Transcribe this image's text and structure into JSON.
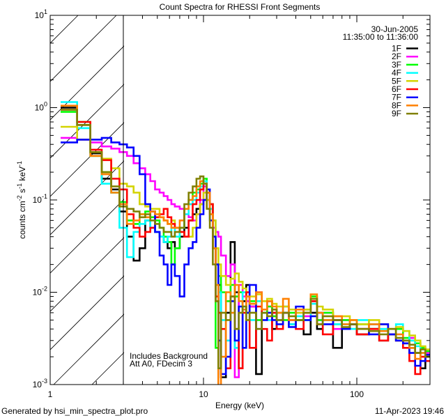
{
  "chart_data": {
    "type": "line",
    "style": "histogram-steps",
    "title": "Count Spectra for RHESSI Front Segments",
    "xlabel": "Energy (keV)",
    "ylabel": "counts cm-2 s-1 keV-1",
    "xscale": "log",
    "yscale": "log",
    "xlim": [
      1,
      300
    ],
    "ylim": [
      0.001,
      10
    ],
    "x_ticks": [
      {
        "value": 1,
        "label": "1"
      },
      {
        "value": 10,
        "label": "10"
      },
      {
        "value": 100,
        "label": "100"
      }
    ],
    "y_ticks": [
      {
        "value": 10,
        "base": "10",
        "exp": "1"
      },
      {
        "value": 1,
        "base": "10",
        "exp": "0"
      },
      {
        "value": 0.1,
        "base": "10",
        "exp": "-1"
      },
      {
        "value": 0.01,
        "base": "10",
        "exp": "-2"
      },
      {
        "value": 0.001,
        "base": "10",
        "exp": "-3"
      }
    ],
    "grid": false,
    "legend_position": "top-right",
    "date": "30-Jun-2005",
    "time_range": "11:35:00 to 11:36:00",
    "shaded_region": {
      "xmin": 1,
      "xmax": 3,
      "pattern": "hatched"
    },
    "annotations": [
      "Includes Background",
      "Att A0, FDecim 3"
    ],
    "energy_edges": [
      1.17,
      1.5,
      1.83,
      2.17,
      2.5,
      2.83,
      3.17,
      3.5,
      3.83,
      4.17,
      4.5,
      4.83,
      5.17,
      5.5,
      5.83,
      6.17,
      6.5,
      7,
      7.5,
      8,
      8.5,
      9,
      9.5,
      10,
      10.5,
      11,
      11.5,
      12,
      12.5,
      13,
      14,
      15,
      16,
      17,
      18,
      19,
      20,
      22,
      24,
      26,
      28,
      30,
      33,
      36,
      40,
      45,
      50,
      55,
      60,
      70,
      80,
      90,
      100,
      120,
      140,
      160,
      180,
      200,
      220,
      240,
      260,
      280,
      300
    ],
    "series": [
      {
        "name": "1F",
        "color": "#000000",
        "values": [
          1.0,
          0.65,
          0.32,
          0.17,
          0.13,
          0.075,
          0.04,
          0.022,
          0.03,
          0.06,
          0.05,
          0.045,
          0.04,
          0.035,
          0.03,
          0.035,
          0.03,
          0.04,
          0.05,
          0.06,
          0.07,
          0.08,
          0.09,
          0.1,
          0.12,
          0.09,
          0.03,
          0.008,
          0.012,
          0.0012,
          0.006,
          0.035,
          0.01,
          0.0015,
          0.008,
          0.012,
          0.007,
          0.0013,
          0.006,
          0.008,
          0.004,
          0.005,
          0.006,
          0.0045,
          0.005,
          0.0035,
          0.006,
          0.004,
          0.005,
          0.0025,
          0.004,
          0.0045,
          0.0035,
          0.004,
          0.003,
          0.0035,
          0.003,
          0.0028,
          0.0025,
          0.0022,
          0.0015,
          0.002
        ]
      },
      {
        "name": "2F",
        "color": "#ff00ff",
        "values": [
          0.47,
          0.45,
          0.42,
          0.38,
          0.36,
          0.33,
          0.3,
          0.25,
          0.22,
          0.19,
          0.16,
          0.13,
          0.12,
          0.11,
          0.1,
          0.09,
          0.085,
          0.08,
          0.07,
          0.065,
          0.06,
          0.07,
          0.1,
          0.14,
          0.1,
          0.07,
          0.05,
          0.045,
          0.04,
          0.025,
          0.015,
          0.02,
          0.0012,
          0.012,
          0.009,
          0.008,
          0.007,
          0.01,
          0.006,
          0.007,
          0.006,
          0.005,
          0.007,
          0.005,
          0.006,
          0.0055,
          0.008,
          0.005,
          0.006,
          0.004,
          0.005,
          0.0045,
          0.004,
          0.0045,
          0.004,
          0.0035,
          0.004,
          0.003,
          0.0032,
          0.0028,
          0.0025,
          0.0022
        ]
      },
      {
        "name": "3F",
        "color": "#00ff00",
        "values": [
          0.9,
          0.7,
          0.3,
          0.2,
          0.12,
          0.095,
          0.06,
          0.055,
          0.07,
          0.075,
          0.065,
          0.06,
          0.05,
          0.04,
          0.035,
          0.02,
          0.03,
          0.05,
          0.08,
          0.1,
          0.12,
          0.13,
          0.15,
          0.17,
          0.12,
          0.08,
          0.04,
          0.0025,
          0.015,
          0.01,
          0.008,
          0.012,
          0.009,
          0.01,
          0.007,
          0.006,
          0.008,
          0.005,
          0.006,
          0.007,
          0.0055,
          0.006,
          0.005,
          0.006,
          0.005,
          0.0065,
          0.009,
          0.005,
          0.006,
          0.0045,
          0.005,
          0.004,
          0.0045,
          0.004,
          0.0038,
          0.0035,
          0.004,
          0.0032,
          0.003,
          0.0028,
          0.0025,
          0.0023
        ]
      },
      {
        "name": "4F",
        "color": "#00ffff",
        "values": [
          1.15,
          0.6,
          0.3,
          0.15,
          0.12,
          0.05,
          0.024,
          0.045,
          0.055,
          0.06,
          0.05,
          0.045,
          0.04,
          0.035,
          0.04,
          0.05,
          0.04,
          0.05,
          0.07,
          0.09,
          0.1,
          0.12,
          0.14,
          0.16,
          0.12,
          0.08,
          0.06,
          0.03,
          0.01,
          0.005,
          0.003,
          0.008,
          0.0025,
          0.007,
          0.01,
          0.006,
          0.005,
          0.008,
          0.006,
          0.005,
          0.006,
          0.005,
          0.007,
          0.0045,
          0.0055,
          0.005,
          0.0075,
          0.006,
          0.005,
          0.0045,
          0.0045,
          0.004,
          0.005,
          0.0045,
          0.004,
          0.0035,
          0.0045,
          0.0038,
          0.003,
          0.0026,
          0.0022,
          0.002
        ]
      },
      {
        "name": "5F",
        "color": "#d4d400",
        "values": [
          0.62,
          0.45,
          0.33,
          0.28,
          0.22,
          0.15,
          0.14,
          0.12,
          0.09,
          0.085,
          0.08,
          0.08,
          0.065,
          0.06,
          0.055,
          0.06,
          0.05,
          0.045,
          0.04,
          0.04,
          0.05,
          0.07,
          0.09,
          0.12,
          0.1,
          0.09,
          0.06,
          0.03,
          0.02,
          0.015,
          0.012,
          0.014,
          0.016,
          0.013,
          0.011,
          0.01,
          0.009,
          0.0095,
          0.008,
          0.0085,
          0.0075,
          0.007,
          0.007,
          0.0065,
          0.006,
          0.0065,
          0.0085,
          0.007,
          0.0065,
          0.0055,
          0.0055,
          0.005,
          0.0045,
          0.005,
          0.0045,
          0.004,
          0.0042,
          0.0038,
          0.0034,
          0.003,
          0.0026,
          0.0024
        ]
      },
      {
        "name": "6F",
        "color": "#ff0000",
        "values": [
          0.95,
          0.7,
          0.35,
          0.27,
          0.17,
          0.13,
          0.07,
          0.05,
          0.04,
          0.045,
          0.05,
          0.065,
          0.07,
          0.08,
          0.065,
          0.055,
          0.05,
          0.045,
          0.04,
          0.06,
          0.09,
          0.1,
          0.13,
          0.15,
          0.12,
          0.09,
          0.03,
          0.009,
          0.006,
          0.004,
          0.0015,
          0.009,
          0.004,
          0.0015,
          0.006,
          0.01,
          0.0025,
          0.007,
          0.004,
          0.003,
          0.006,
          0.004,
          0.006,
          0.005,
          0.004,
          0.006,
          0.008,
          0.0045,
          0.0035,
          0.005,
          0.004,
          0.0045,
          0.0035,
          0.004,
          0.003,
          0.0035,
          0.003,
          0.0025,
          0.0018,
          0.0013,
          0.002,
          0.0018
        ]
      },
      {
        "name": "7F",
        "color": "#0000ff",
        "values": [
          0.42,
          0.45,
          0.45,
          0.47,
          0.42,
          0.4,
          0.37,
          0.3,
          0.19,
          0.09,
          0.075,
          0.045,
          0.025,
          0.02,
          0.012,
          0.02,
          0.015,
          0.009,
          0.02,
          0.03,
          0.035,
          0.05,
          0.07,
          0.1,
          0.13,
          0.06,
          0.04,
          0.02,
          0.003,
          0.0013,
          0.002,
          0.008,
          0.003,
          0.007,
          0.0025,
          0.006,
          0.012,
          0.004,
          0.005,
          0.006,
          0.005,
          0.0045,
          0.006,
          0.0042,
          0.007,
          0.005,
          0.0055,
          0.006,
          0.0045,
          0.005,
          0.004,
          0.0045,
          0.004,
          0.0035,
          0.0045,
          0.0035,
          0.003,
          0.0028,
          0.0022,
          0.0016,
          0.0018,
          0.0021
        ]
      },
      {
        "name": "8F",
        "color": "#ff8000",
        "values": [
          1.05,
          0.65,
          0.3,
          0.19,
          0.12,
          0.09,
          0.055,
          0.06,
          0.07,
          0.065,
          0.075,
          0.07,
          0.065,
          0.06,
          0.055,
          0.05,
          0.05,
          0.06,
          0.08,
          0.1,
          0.11,
          0.14,
          0.16,
          0.15,
          0.12,
          0.07,
          0.03,
          0.012,
          0.0008,
          0.002,
          0.01,
          0.006,
          0.012,
          0.008,
          0.0065,
          0.009,
          0.0075,
          0.01,
          0.0065,
          0.008,
          0.007,
          0.006,
          0.0085,
          0.005,
          0.0065,
          0.006,
          0.0095,
          0.006,
          0.005,
          0.0055,
          0.0045,
          0.005,
          0.004,
          0.0045,
          0.0038,
          0.004,
          0.0035,
          0.003,
          0.0025,
          0.0019,
          0.0022,
          0.002
        ]
      },
      {
        "name": "9F",
        "color": "#808000",
        "values": [
          0.95,
          0.65,
          0.33,
          0.2,
          0.14,
          0.085,
          0.08,
          0.075,
          0.065,
          0.07,
          0.06,
          0.055,
          0.05,
          0.045,
          0.045,
          0.04,
          0.045,
          0.05,
          0.09,
          0.12,
          0.14,
          0.17,
          0.18,
          0.15,
          0.08,
          0.05,
          0.02,
          0.008,
          0.0015,
          0.006,
          0.005,
          0.009,
          0.004,
          0.006,
          0.007,
          0.005,
          0.006,
          0.004,
          0.006,
          0.0055,
          0.0065,
          0.005,
          0.006,
          0.0055,
          0.005,
          0.006,
          0.0085,
          0.0045,
          0.0055,
          0.005,
          0.0042,
          0.0045,
          0.004,
          0.0038,
          0.0035,
          0.004,
          0.0032,
          0.003,
          0.0027,
          0.0022,
          0.0024,
          0.002
        ]
      }
    ]
  },
  "footer": {
    "generated_by": "Generated by hsi_min_spectra_plot.pro",
    "timestamp": "11-Apr-2023 19:46"
  }
}
